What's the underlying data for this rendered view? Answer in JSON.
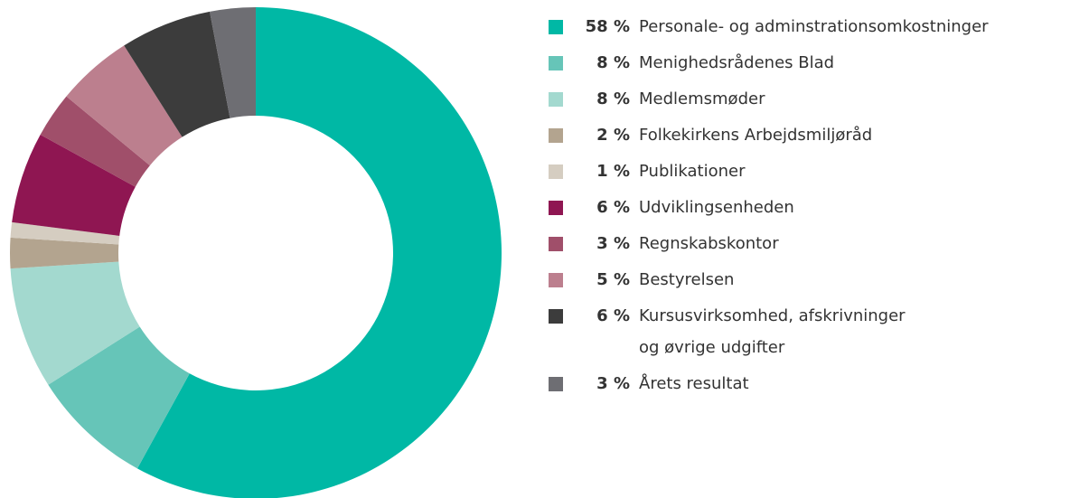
{
  "chart_data": {
    "type": "donut",
    "categories": [
      "Personale- og adminstrationsomkostninger",
      "Menighedsrådenes Blad",
      "Medlemsmøder",
      "Folkekirkens Arbejdsmiljøråd",
      "Publikationer",
      "Udviklingsenheden",
      "Regnskabskontor",
      "Bestyrelsen",
      "Kursusvirksomhed, afskrivninger\nog øvrige udgifter",
      "Årets resultat"
    ],
    "values": [
      58,
      8,
      8,
      2,
      1,
      6,
      3,
      5,
      6,
      3
    ],
    "value_labels": [
      "58 %",
      "8 %",
      "8 %",
      "2 %",
      "1 %",
      "6 %",
      "3 %",
      "5 %",
      "6 %",
      "3 %"
    ],
    "colors": [
      "#00b8a5",
      "#66c5b8",
      "#a3d9cf",
      "#b3a48f",
      "#d5cdc1",
      "#8f1652",
      "#a04f6a",
      "#bc7f8e",
      "#3c3c3c",
      "#6e6e73"
    ],
    "legend": "right"
  }
}
